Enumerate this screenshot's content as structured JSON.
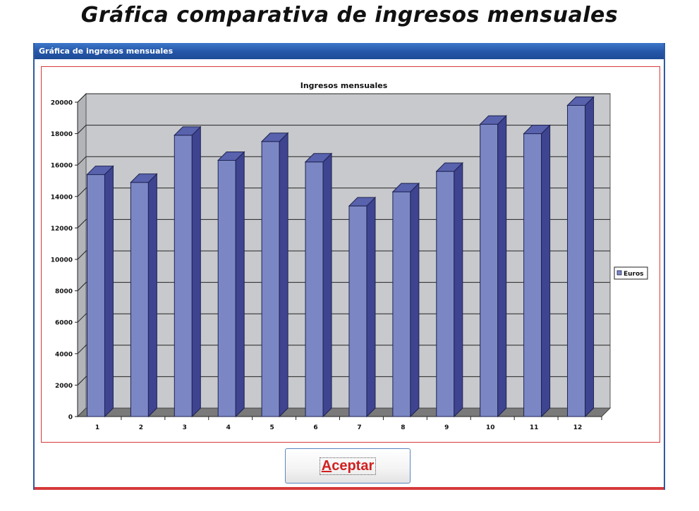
{
  "page": {
    "heading": "Gráfica comparativa de ingresos mensuales"
  },
  "window": {
    "title": "Gráfica de ingresos mensuales"
  },
  "buttons": {
    "accept_mnemonic": "A",
    "accept_rest": "ceptar"
  },
  "colors": {
    "bar_front": "#7b87c5",
    "bar_side": "#3e4490",
    "bar_top": "#5862ad",
    "plot_bg": "#c8c9cc",
    "floor": "#7a7a7a",
    "frame_red": "#d63a3a",
    "titlebar": "#2556a8"
  },
  "chart_data": {
    "type": "bar",
    "title": "Ingresos mensuales",
    "categories": [
      "1",
      "2",
      "3",
      "4",
      "5",
      "6",
      "7",
      "8",
      "9",
      "10",
      "11",
      "12"
    ],
    "series": [
      {
        "name": "Euros",
        "values": [
          15400,
          14900,
          17900,
          16300,
          17500,
          16200,
          13400,
          14300,
          15600,
          18600,
          18000,
          19800
        ]
      }
    ],
    "ylim": [
      0,
      20000
    ],
    "yticks": [
      0,
      2000,
      4000,
      6000,
      8000,
      10000,
      12000,
      14000,
      16000,
      18000,
      20000
    ],
    "xlabel": "",
    "ylabel": "",
    "grid": true,
    "legend_position": "right"
  }
}
